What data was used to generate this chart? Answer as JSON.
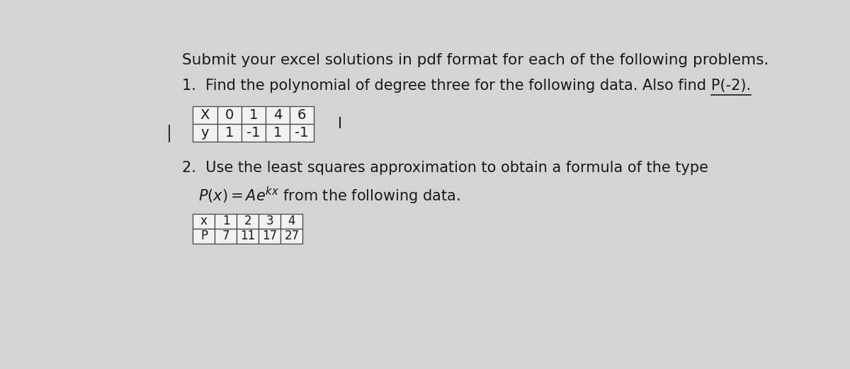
{
  "background_color": "#d4d4d4",
  "title_text": "Submit your excel solutions in pdf format for each of the following problems.",
  "p1_pre": "1.  Find the polynomial of degree three for the following data. Also find ",
  "p1_underlined": "P(-2).",
  "table1_headers": [
    "X",
    "0",
    "1",
    "4",
    "6"
  ],
  "table1_row2": [
    "y",
    "1",
    "-1",
    "1",
    "-1"
  ],
  "problem2_line1": "2.  Use the least squares approximation to obtain a formula of the type",
  "problem2_line2_pre": "      ",
  "problem2_formula": "P(x) = Ae^{kx}",
  "problem2_line2_end": " from the following data.",
  "table2_headers": [
    "x",
    "1",
    "2",
    "3",
    "4"
  ],
  "table2_row2": [
    "P",
    "7",
    "11",
    "17",
    "27"
  ],
  "font_family": "DejaVu Sans",
  "title_fontsize": 15.5,
  "body_fontsize": 15,
  "table_fontsize": 14,
  "table2_fontsize": 12,
  "text_color": "#1a1a1a",
  "table_bg": "#f2f2f2",
  "table_border": "#444444"
}
